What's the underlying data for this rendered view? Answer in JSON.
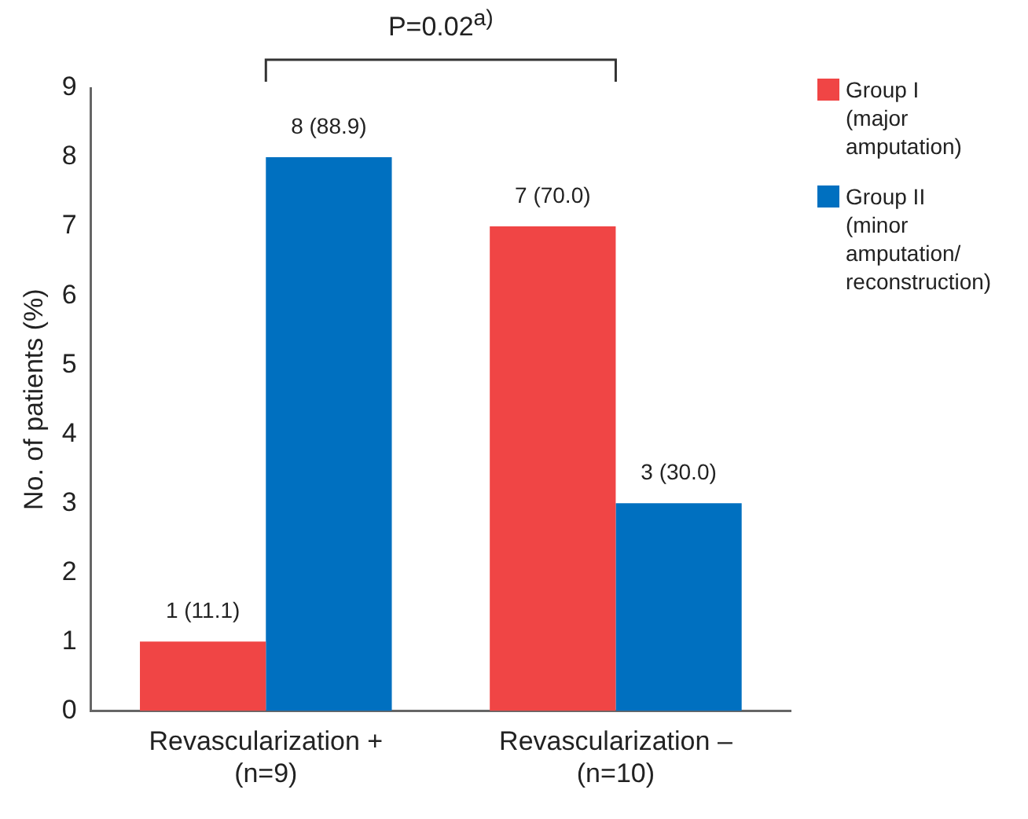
{
  "chart_data": {
    "type": "bar",
    "ylabel": "No. of patients (%)",
    "categories": [
      "Revascularization +\n(n=9)",
      "Revascularization –\n(n=10)"
    ],
    "series": [
      {
        "name": "Group I\n(major amputation)",
        "color": "#f04545",
        "values": [
          1,
          7
        ],
        "value_labels": [
          "1 (11.1)",
          "7 (70.0)"
        ]
      },
      {
        "name": "Group II\n(minor amputation/\n reconstruction)",
        "color": "#0070c0",
        "values": [
          8,
          3
        ],
        "value_labels": [
          "8 (88.9)",
          "3 (30.0)"
        ]
      }
    ],
    "ylim": [
      0,
      9
    ],
    "yticks": [
      0,
      1,
      2,
      3,
      4,
      5,
      6,
      7,
      8,
      9
    ],
    "grid": false,
    "legend": "top right",
    "annotations": [
      "P=0.02$^{a)}$"
    ]
  }
}
